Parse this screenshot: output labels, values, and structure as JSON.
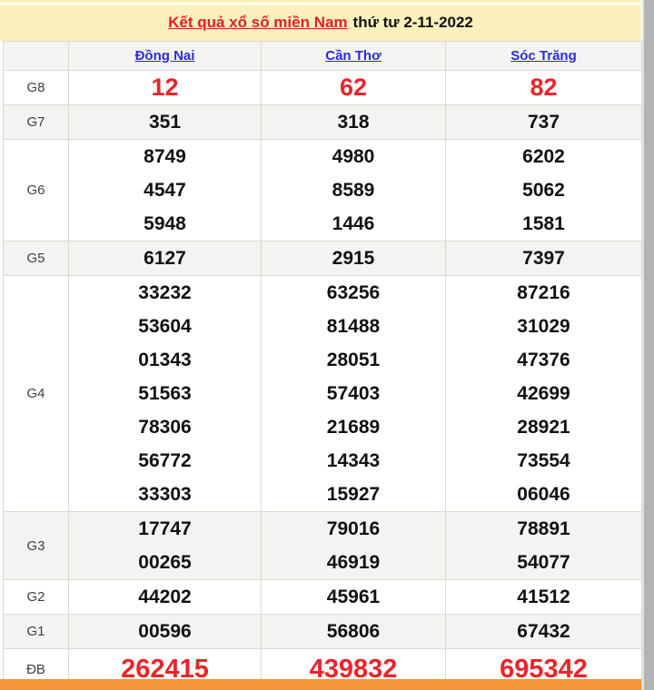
{
  "header": {
    "title_link": "Kết quả xổ số miền Nam",
    "title_suffix": "thứ tư 2-11-2022"
  },
  "table": {
    "columns": [
      "Đồng Nai",
      "Cần Thơ",
      "Sóc Trăng"
    ],
    "rows": [
      {
        "label": "G8",
        "highlight": true,
        "values": [
          [
            "12"
          ],
          [
            "62"
          ],
          [
            "82"
          ]
        ]
      },
      {
        "label": "G7",
        "highlight": false,
        "values": [
          [
            "351"
          ],
          [
            "318"
          ],
          [
            "737"
          ]
        ]
      },
      {
        "label": "G6",
        "highlight": false,
        "values": [
          [
            "8749",
            "4547",
            "5948"
          ],
          [
            "4980",
            "8589",
            "1446"
          ],
          [
            "6202",
            "5062",
            "1581"
          ]
        ]
      },
      {
        "label": "G5",
        "highlight": false,
        "values": [
          [
            "6127"
          ],
          [
            "2915"
          ],
          [
            "7397"
          ]
        ]
      },
      {
        "label": "G4",
        "highlight": false,
        "values": [
          [
            "33232",
            "53604",
            "01343",
            "51563",
            "78306",
            "56772",
            "33303"
          ],
          [
            "63256",
            "81488",
            "28051",
            "57403",
            "21689",
            "14343",
            "15927"
          ],
          [
            "87216",
            "31029",
            "47376",
            "42699",
            "28921",
            "73554",
            "06046"
          ]
        ]
      },
      {
        "label": "G3",
        "highlight": false,
        "values": [
          [
            "17747",
            "00265"
          ],
          [
            "79016",
            "46919"
          ],
          [
            "78891",
            "54077"
          ]
        ]
      },
      {
        "label": "G2",
        "highlight": false,
        "values": [
          [
            "44202"
          ],
          [
            "45961"
          ],
          [
            "41512"
          ]
        ]
      },
      {
        "label": "G1",
        "highlight": false,
        "values": [
          [
            "00596"
          ],
          [
            "56806"
          ],
          [
            "67432"
          ]
        ]
      },
      {
        "label": "ĐB",
        "highlight": true,
        "values": [
          [
            "262415"
          ],
          [
            "439832"
          ],
          [
            "695342"
          ]
        ]
      }
    ]
  },
  "colors": {
    "header_background": "#faf0bc",
    "title_red": "#e31e25",
    "prize_red": "#e9252b",
    "link_blue": "#2b2bd5",
    "zebra_gray": "#f3f3f1",
    "footer_orange": "#f7953b",
    "scrollbar_gray": "#b3b3b3"
  }
}
